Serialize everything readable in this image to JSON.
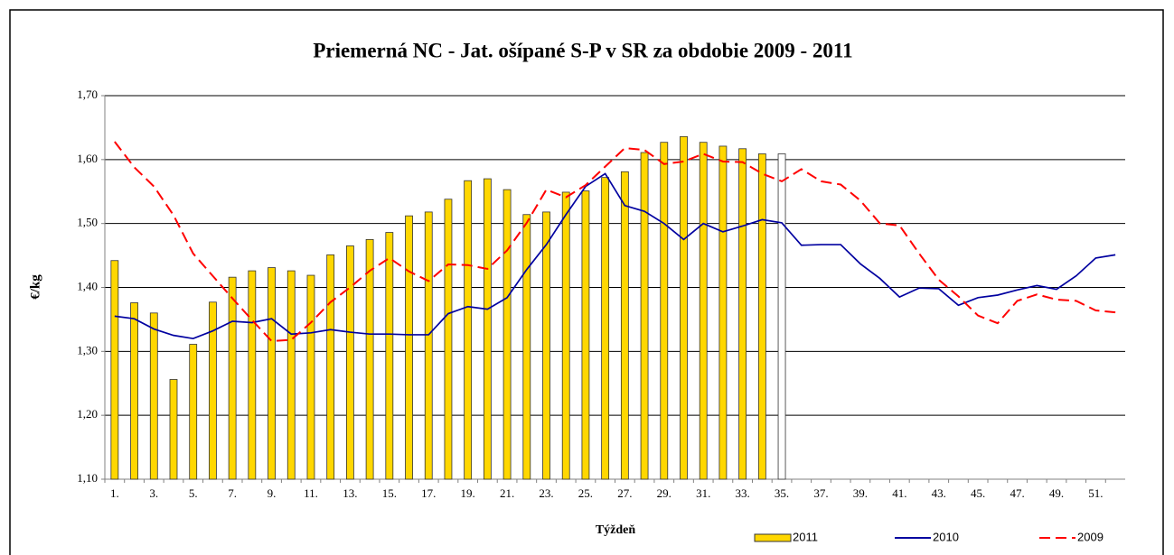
{
  "chart_data": {
    "type": "bar_line",
    "title": "Priemerná NC  -  Jat. ošípané S-P v SR za obdobie 2009 - 2011",
    "y_label": "€/kg",
    "x_label": "Týždeň",
    "categories": [
      "1.",
      null,
      "3.",
      null,
      "5.",
      null,
      "7.",
      null,
      "9.",
      null,
      "11.",
      null,
      "13.",
      null,
      "15.",
      null,
      "17.",
      null,
      "19.",
      null,
      "21.",
      null,
      "23.",
      null,
      "25.",
      null,
      "27.",
      null,
      "29.",
      null,
      "31.",
      null,
      "33.",
      null,
      "35.",
      null,
      "37.",
      null,
      "39.",
      null,
      "41.",
      null,
      "43.",
      null,
      "45.",
      null,
      "47.",
      null,
      "49.",
      null,
      "51.",
      null
    ],
    "ylim": [
      1.1,
      1.7
    ],
    "yticks": [
      {
        "value": 1.1,
        "label": "1,10"
      },
      {
        "value": 1.2,
        "label": "1,20"
      },
      {
        "value": 1.3,
        "label": "1,30"
      },
      {
        "value": 1.4,
        "label": "1,40"
      },
      {
        "value": 1.5,
        "label": "1,50"
      },
      {
        "value": 1.6,
        "label": "1,60"
      },
      {
        "value": 1.7,
        "label": "1,70"
      }
    ],
    "grid": true,
    "legend": "bottom-right",
    "series": [
      {
        "name": "2011",
        "type": "bar",
        "color": "#FFD700",
        "colors": [
          "#FFD700",
          "#FFD700",
          "#FFD700",
          "#FFD700",
          "#FFD700",
          "#FFD700",
          "#FFD700",
          "#FFD700",
          "#FFD700",
          "#FFD700",
          "#FFD700",
          "#FFD700",
          "#FFD700",
          "#FFD700",
          "#FFD700",
          "#FFD700",
          "#FFD700",
          "#FFD700",
          "#FFD700",
          "#FFD700",
          "#FFD700",
          "#FFD700",
          "#FFD700",
          "#FFD700",
          "#FFD700",
          "#FFD700",
          "#FFD700",
          "#FFD700",
          "#FFD700",
          "#FFD700",
          "#FFD700",
          "#FFD700",
          "#FFD700",
          "#FFD700",
          "#FFFFFF",
          null,
          null,
          null,
          null,
          null,
          null,
          null,
          null,
          null,
          null,
          null,
          null,
          null,
          null,
          null,
          null,
          null
        ],
        "values": [
          1.442,
          1.376,
          1.36,
          1.256,
          1.311,
          1.377,
          1.416,
          1.426,
          1.431,
          1.426,
          1.419,
          1.451,
          1.465,
          1.475,
          1.486,
          1.512,
          1.518,
          1.538,
          1.567,
          1.57,
          1.553,
          1.514,
          1.518,
          1.549,
          1.551,
          1.572,
          1.581,
          1.611,
          1.627,
          1.636,
          1.627,
          1.621,
          1.617,
          1.609,
          1.609,
          null,
          null,
          null,
          null,
          null,
          null,
          null,
          null,
          null,
          null,
          null,
          null,
          null,
          null,
          null,
          null,
          null
        ]
      },
      {
        "name": "2010",
        "type": "line",
        "color": "#0000A0",
        "dash": false,
        "values": [
          1.355,
          1.351,
          1.335,
          1.325,
          1.32,
          1.332,
          1.347,
          1.345,
          1.351,
          1.327,
          1.329,
          1.334,
          1.33,
          1.327,
          1.327,
          1.326,
          1.326,
          1.359,
          1.37,
          1.366,
          1.384,
          1.428,
          1.467,
          1.514,
          1.558,
          1.578,
          1.528,
          1.519,
          1.5,
          1.475,
          1.5,
          1.487,
          1.496,
          1.506,
          1.501,
          1.466,
          1.467,
          1.467,
          1.437,
          1.414,
          1.385,
          1.399,
          1.398,
          1.372,
          1.384,
          1.388,
          1.396,
          1.403,
          1.397,
          1.418,
          1.446,
          1.451
        ]
      },
      {
        "name": "2009",
        "type": "line",
        "color": "#FF0000",
        "dash": true,
        "values": [
          1.628,
          1.588,
          1.558,
          1.513,
          1.453,
          1.418,
          1.383,
          1.349,
          1.316,
          1.318,
          1.345,
          1.377,
          1.4,
          1.426,
          1.446,
          1.425,
          1.41,
          1.436,
          1.435,
          1.429,
          1.458,
          1.501,
          1.553,
          1.541,
          1.56,
          1.589,
          1.618,
          1.615,
          1.593,
          1.597,
          1.609,
          1.597,
          1.596,
          1.578,
          1.566,
          1.585,
          1.566,
          1.561,
          1.536,
          1.5,
          1.497,
          1.453,
          1.412,
          1.386,
          1.356,
          1.344,
          1.379,
          1.389,
          1.381,
          1.379,
          1.364,
          1.361
        ]
      }
    ]
  }
}
